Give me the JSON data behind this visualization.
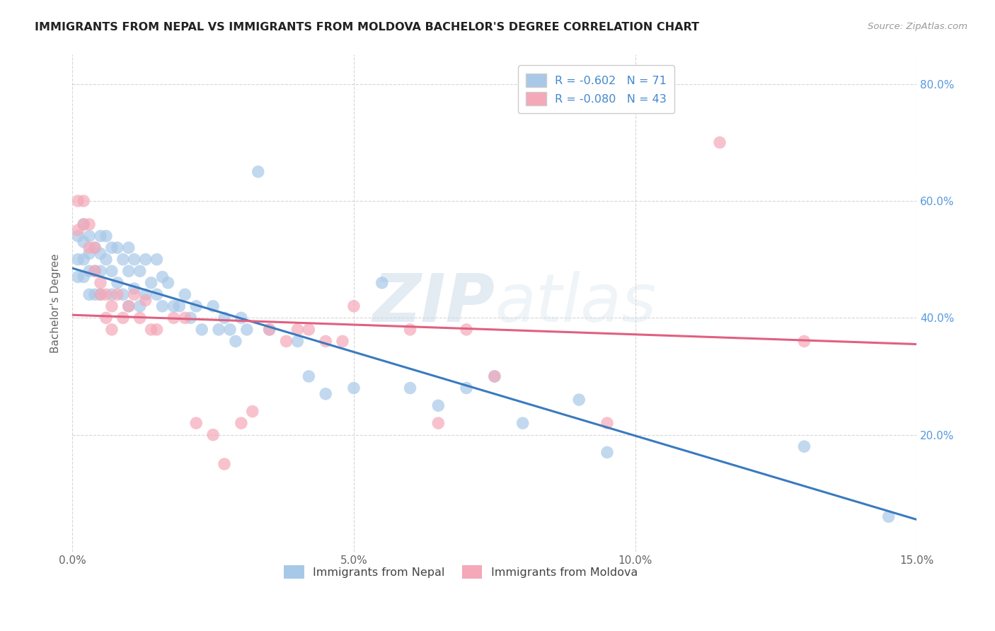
{
  "title": "IMMIGRANTS FROM NEPAL VS IMMIGRANTS FROM MOLDOVA BACHELOR'S DEGREE CORRELATION CHART",
  "source": "Source: ZipAtlas.com",
  "ylabel": "Bachelor's Degree",
  "r_nepal": -0.602,
  "n_nepal": 71,
  "r_moldova": -0.08,
  "n_moldova": 43,
  "color_nepal": "#a8c8e8",
  "color_moldova": "#f4a8b8",
  "trendline_nepal": "#3a7abf",
  "trendline_moldova": "#e06080",
  "x_min": 0.0,
  "x_max": 0.15,
  "y_min": 0.0,
  "y_max": 0.85,
  "nepal_trend_x0": 0.0,
  "nepal_trend_y0": 0.485,
  "nepal_trend_x1": 0.15,
  "nepal_trend_y1": 0.055,
  "moldova_trend_x0": 0.0,
  "moldova_trend_y0": 0.405,
  "moldova_trend_x1": 0.15,
  "moldova_trend_y1": 0.355,
  "nepal_x": [
    0.001,
    0.001,
    0.001,
    0.002,
    0.002,
    0.002,
    0.002,
    0.003,
    0.003,
    0.003,
    0.003,
    0.004,
    0.004,
    0.004,
    0.005,
    0.005,
    0.005,
    0.005,
    0.006,
    0.006,
    0.007,
    0.007,
    0.007,
    0.008,
    0.008,
    0.009,
    0.009,
    0.01,
    0.01,
    0.01,
    0.011,
    0.011,
    0.012,
    0.012,
    0.013,
    0.013,
    0.014,
    0.015,
    0.015,
    0.016,
    0.016,
    0.017,
    0.018,
    0.019,
    0.02,
    0.021,
    0.022,
    0.023,
    0.025,
    0.026,
    0.027,
    0.028,
    0.029,
    0.03,
    0.031,
    0.033,
    0.035,
    0.04,
    0.042,
    0.045,
    0.05,
    0.055,
    0.06,
    0.065,
    0.07,
    0.075,
    0.08,
    0.09,
    0.095,
    0.13,
    0.145
  ],
  "nepal_y": [
    0.54,
    0.5,
    0.47,
    0.56,
    0.53,
    0.5,
    0.47,
    0.54,
    0.51,
    0.48,
    0.44,
    0.52,
    0.48,
    0.44,
    0.54,
    0.51,
    0.48,
    0.44,
    0.54,
    0.5,
    0.52,
    0.48,
    0.44,
    0.52,
    0.46,
    0.5,
    0.44,
    0.52,
    0.48,
    0.42,
    0.5,
    0.45,
    0.48,
    0.42,
    0.5,
    0.44,
    0.46,
    0.5,
    0.44,
    0.47,
    0.42,
    0.46,
    0.42,
    0.42,
    0.44,
    0.4,
    0.42,
    0.38,
    0.42,
    0.38,
    0.4,
    0.38,
    0.36,
    0.4,
    0.38,
    0.65,
    0.38,
    0.36,
    0.3,
    0.27,
    0.28,
    0.46,
    0.28,
    0.25,
    0.28,
    0.3,
    0.22,
    0.26,
    0.17,
    0.18,
    0.06
  ],
  "moldova_x": [
    0.001,
    0.001,
    0.002,
    0.002,
    0.003,
    0.003,
    0.004,
    0.004,
    0.005,
    0.005,
    0.006,
    0.006,
    0.007,
    0.007,
    0.008,
    0.009,
    0.01,
    0.011,
    0.012,
    0.013,
    0.014,
    0.015,
    0.018,
    0.02,
    0.022,
    0.025,
    0.027,
    0.03,
    0.032,
    0.035,
    0.038,
    0.04,
    0.042,
    0.045,
    0.048,
    0.05,
    0.06,
    0.065,
    0.07,
    0.075,
    0.095,
    0.115,
    0.13
  ],
  "moldova_y": [
    0.6,
    0.55,
    0.6,
    0.56,
    0.56,
    0.52,
    0.52,
    0.48,
    0.46,
    0.44,
    0.44,
    0.4,
    0.42,
    0.38,
    0.44,
    0.4,
    0.42,
    0.44,
    0.4,
    0.43,
    0.38,
    0.38,
    0.4,
    0.4,
    0.22,
    0.2,
    0.15,
    0.22,
    0.24,
    0.38,
    0.36,
    0.38,
    0.38,
    0.36,
    0.36,
    0.42,
    0.38,
    0.22,
    0.38,
    0.3,
    0.22,
    0.7,
    0.36
  ],
  "grid_color": "#cccccc",
  "background_color": "#ffffff",
  "watermark_zip": "ZIP",
  "watermark_atlas": "atlas",
  "x_ticks": [
    0.0,
    0.05,
    0.1,
    0.15
  ],
  "x_tick_labels": [
    "0.0%",
    "5.0%",
    "10.0%",
    "15.0%"
  ],
  "y_ticks": [
    0.2,
    0.4,
    0.6,
    0.8
  ],
  "y_tick_labels": [
    "20.0%",
    "40.0%",
    "60.0%",
    "80.0%"
  ]
}
